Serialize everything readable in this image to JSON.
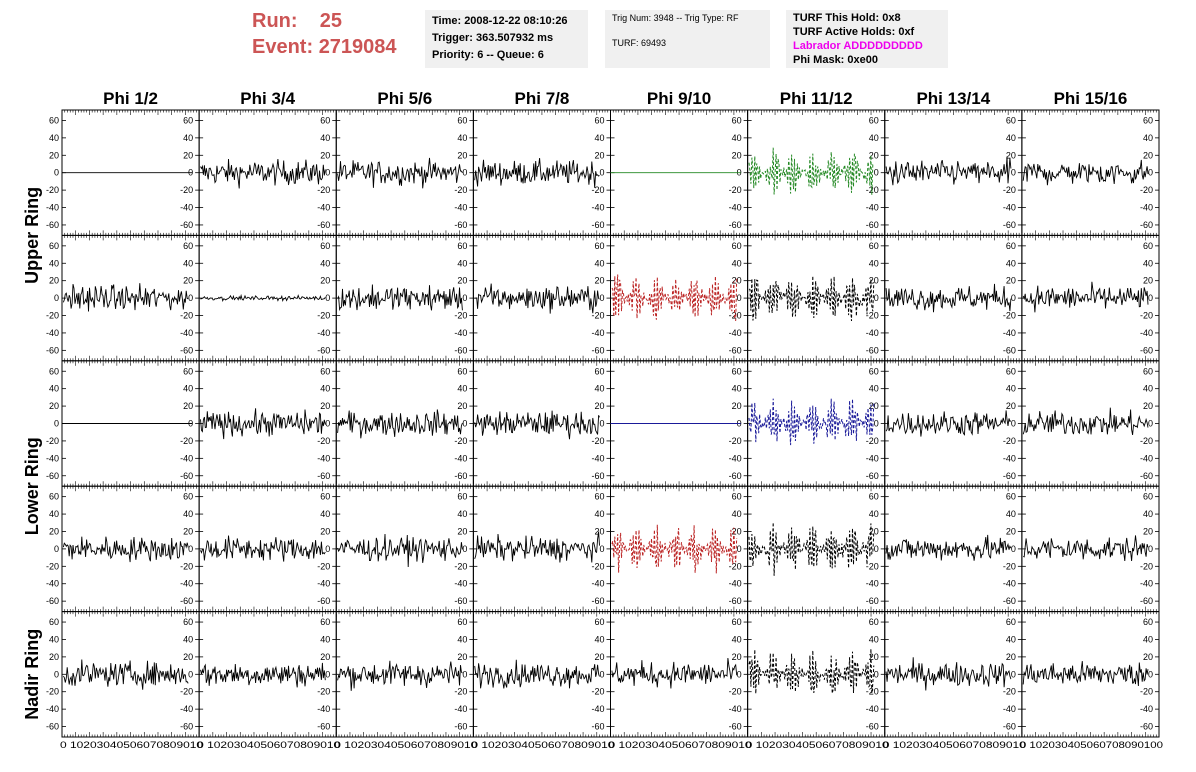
{
  "header": {
    "run_label": "Run:",
    "run_value": "25",
    "event_label": "Event:",
    "event_value": "2719084"
  },
  "info_boxes": {
    "time": "Time: 2008-12-22 08:10:26",
    "trigger": "Trigger: 363.507932 ms",
    "priority": "Priority: 6 -- Queue: 6",
    "trig_num": "Trig Num: 3948 -- Trig Type: RF",
    "turf": "TURF: 69493",
    "turf_hold": "TURF This Hold: 0x8",
    "turf_active": "TURF Active Holds: 0xf",
    "labrador": "Labrador ADDDDDDDDD",
    "phi_mask": "Phi Mask: 0xe00"
  },
  "colors": {
    "run_text": "#cc5555",
    "info_bg": "#f0f0f0",
    "labrador": "#ee00ee",
    "green": "#228822",
    "red": "#bb2222",
    "blue": "#1a1a99",
    "black": "#000000"
  },
  "chart_data": {
    "type": "line",
    "columns": [
      "Phi 1/2",
      "Phi 3/4",
      "Phi 5/6",
      "Phi 7/8",
      "Phi 9/10",
      "Phi 11/12",
      "Phi 13/14",
      "Phi 15/16"
    ],
    "rows": [
      "Upper Ring",
      "Lower Ring",
      "Nadir Ring"
    ],
    "sub_rows": 5,
    "xlim": [
      0,
      100
    ],
    "ylim": [
      -72,
      72
    ],
    "y_ticks": [
      "-60",
      "-40",
      "-20",
      "0",
      "20",
      "40",
      "60"
    ],
    "x_ticks": [
      "0",
      "10",
      "20",
      "30",
      "40",
      "50",
      "60",
      "70",
      "80",
      "90",
      "100"
    ],
    "x_tick_row": "0 10203040506070809010",
    "x_tick_row_last": "0 102030405060708090100",
    "panels": [
      [
        "flat",
        "noise",
        "noise",
        "noise",
        "flat-green",
        "dashed-green",
        "noise",
        "noise"
      ],
      [
        "noise",
        "quiet",
        "noise",
        "noise",
        "dashed-red",
        "dashed-black",
        "noise",
        "noise"
      ],
      [
        "flat",
        "noise",
        "noise",
        "noise",
        "flat-blue",
        "dashed-blue",
        "noise",
        "noise"
      ],
      [
        "noise",
        "noise",
        "noise",
        "noise",
        "dashed-red",
        "dashed-black",
        "noise",
        "noise"
      ],
      [
        "noise",
        "noise",
        "noise",
        "noise",
        "noise",
        "dashed-black",
        "noise",
        "noise"
      ]
    ],
    "amplitude": {
      "noise": 18,
      "quiet": 3,
      "dashed": 26
    }
  }
}
